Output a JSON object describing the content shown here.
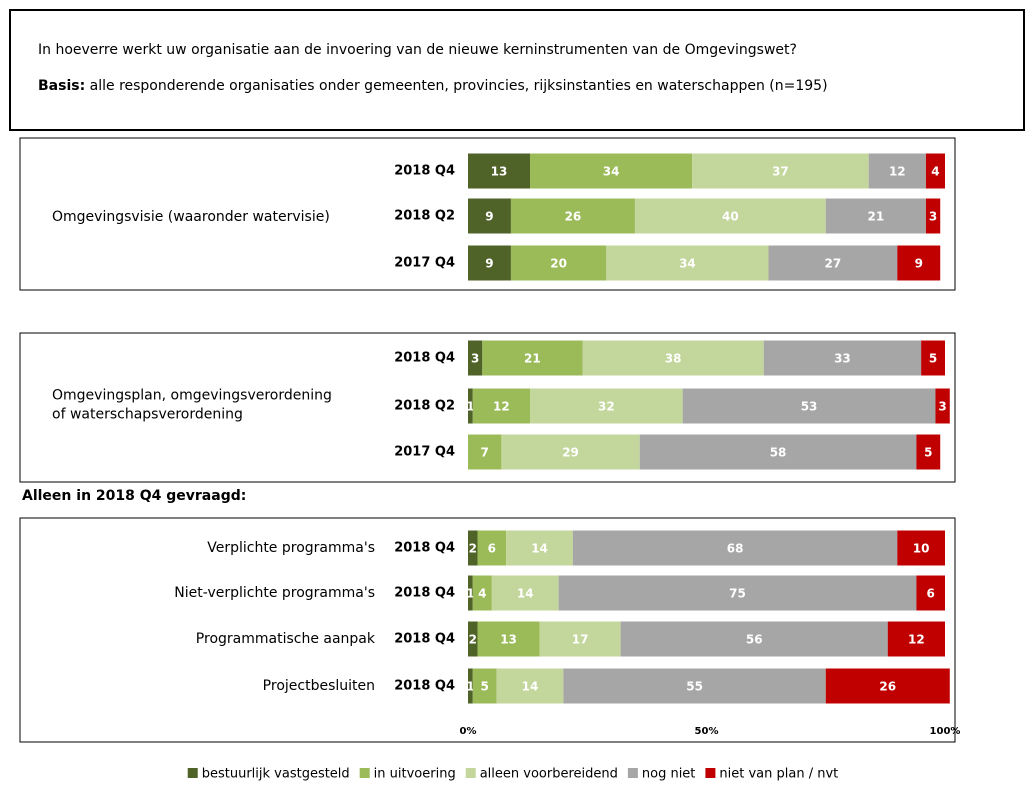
{
  "chart_data": {
    "type": "bar",
    "orientation": "horizontal",
    "stacked": true,
    "header": {
      "question": "In hoeverre werkt uw organisatie aan de invoering van de nieuwe kerninstrumenten van de Omgevingswet?",
      "basis_label": "Basis:",
      "basis_text": "alle responderende organisaties onder gemeenten, provincies, rijksinstanties en waterschappen (n=195)"
    },
    "series": [
      {
        "name": "bestuurlijk vastgesteld",
        "color": "#4f6228"
      },
      {
        "name": "in uitvoering",
        "color": "#9bbb59"
      },
      {
        "name": "alleen voorbereidend",
        "color": "#c3d69b"
      },
      {
        "name": "nog niet",
        "color": "#a6a6a6"
      },
      {
        "name": "niet van plan / nvt",
        "color": "#c00000"
      }
    ],
    "panels": [
      {
        "groups": [
          {
            "label": [
              "Omgevingsvisie (waaronder watervisie)"
            ],
            "rows": [
              {
                "category": "2018 Q4",
                "values": [
                  13,
                  34,
                  37,
                  12,
                  4
                ]
              },
              {
                "category": "2018 Q2",
                "values": [
                  9,
                  26,
                  40,
                  21,
                  3
                ]
              },
              {
                "category": "2017 Q4",
                "values": [
                  9,
                  20,
                  34,
                  27,
                  9
                ]
              }
            ]
          }
        ]
      },
      {
        "groups": [
          {
            "label": [
              "Omgevingsplan, omgevingsverordening",
              "of waterschapsverordening"
            ],
            "rows": [
              {
                "category": "2018 Q4",
                "values": [
                  3,
                  21,
                  38,
                  33,
                  5
                ]
              },
              {
                "category": "2018 Q2",
                "values": [
                  1,
                  12,
                  32,
                  53,
                  3
                ]
              },
              {
                "category": "2017 Q4",
                "values": [
                  null,
                  7,
                  29,
                  58,
                  5
                ]
              }
            ]
          }
        ]
      },
      {
        "title": "Alleen in 2018 Q4 gevraagd:",
        "groups": [
          {
            "label": [
              "Verplichte programma's"
            ],
            "rows": [
              {
                "category": "2018 Q4",
                "values": [
                  2,
                  6,
                  14,
                  68,
                  10
                ]
              }
            ]
          },
          {
            "label": [
              "Niet-verplichte programma's"
            ],
            "rows": [
              {
                "category": "2018 Q4",
                "values": [
                  1,
                  4,
                  14,
                  75,
                  6
                ]
              }
            ]
          },
          {
            "label": [
              "Programmatische aanpak"
            ],
            "rows": [
              {
                "category": "2018 Q4",
                "values": [
                  2,
                  13,
                  17,
                  56,
                  12
                ]
              }
            ]
          },
          {
            "label": [
              "Projectbesluiten"
            ],
            "rows": [
              {
                "category": "2018 Q4",
                "values": [
                  1,
                  5,
                  14,
                  55,
                  26
                ]
              }
            ]
          }
        ]
      }
    ],
    "xlim": [
      0,
      100
    ],
    "xticks": [
      {
        "value": 0,
        "label": "0%"
      },
      {
        "value": 50,
        "label": "50%"
      },
      {
        "value": 100,
        "label": "100%"
      }
    ]
  }
}
